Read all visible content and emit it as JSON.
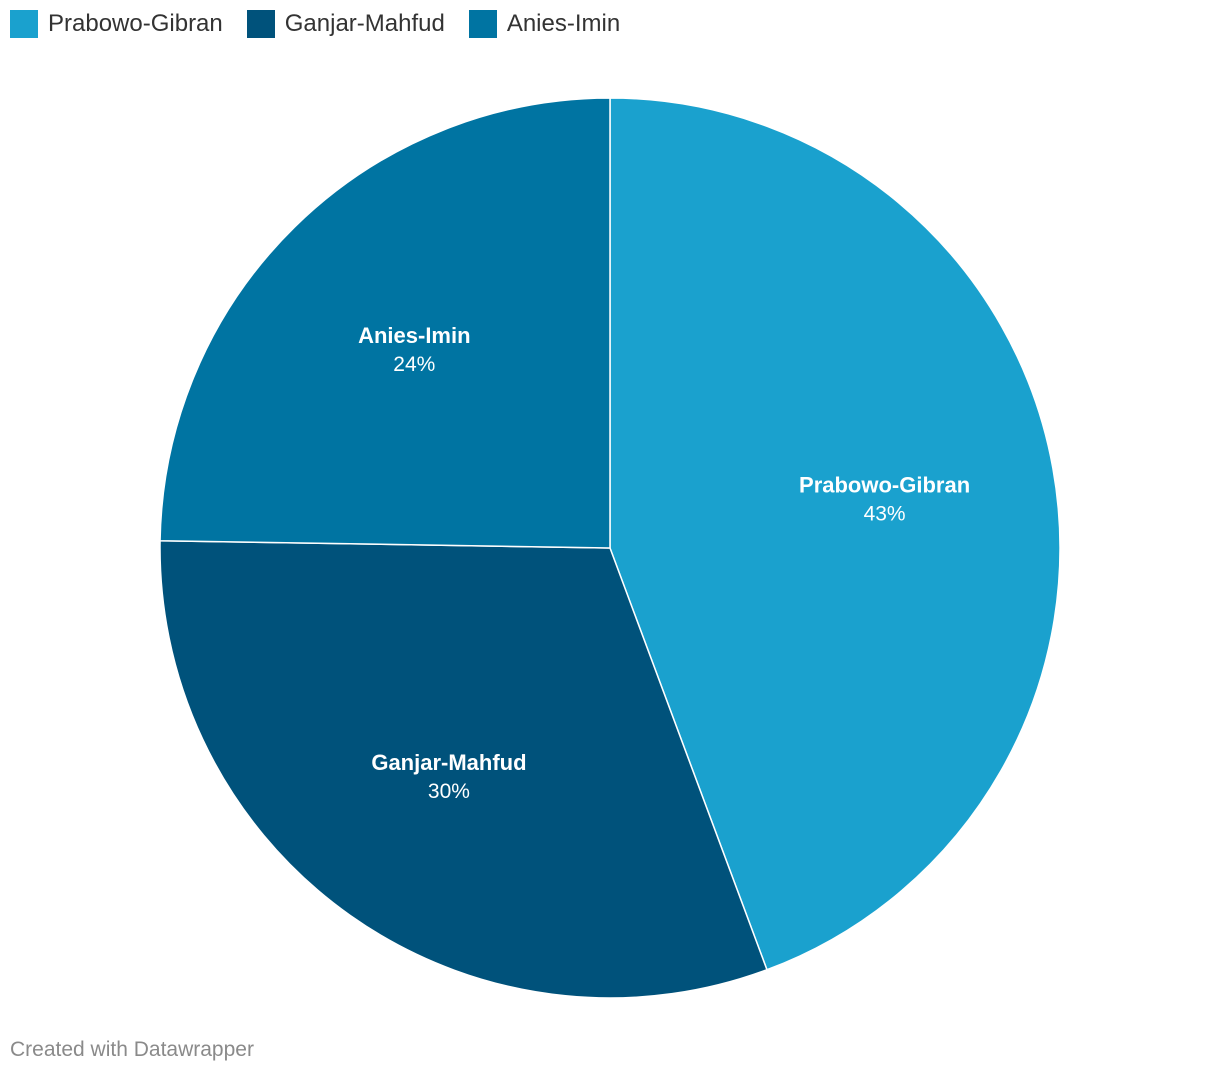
{
  "chart_data": {
    "type": "pie",
    "categories": [
      "Prabowo-Gibran",
      "Ganjar-Mahfud",
      "Anies-Imin"
    ],
    "values": [
      43,
      30,
      24
    ],
    "unit": "%",
    "colors": [
      "#1aa1ce",
      "#00527b",
      "#0074a2"
    ],
    "legend": "top-left",
    "slice_labels": [
      {
        "name": "Prabowo-Gibran",
        "value_text": "43%"
      },
      {
        "name": "Ganjar-Mahfud",
        "value_text": "30%"
      },
      {
        "name": "Anies-Imin",
        "value_text": "24%"
      }
    ]
  },
  "legend": {
    "items": [
      {
        "label": "Prabowo-Gibran",
        "color": "#1aa1ce"
      },
      {
        "label": "Ganjar-Mahfud",
        "color": "#00527b"
      },
      {
        "label": "Anies-Imin",
        "color": "#0074a2"
      }
    ]
  },
  "footer": {
    "credit": "Created with Datawrapper"
  }
}
